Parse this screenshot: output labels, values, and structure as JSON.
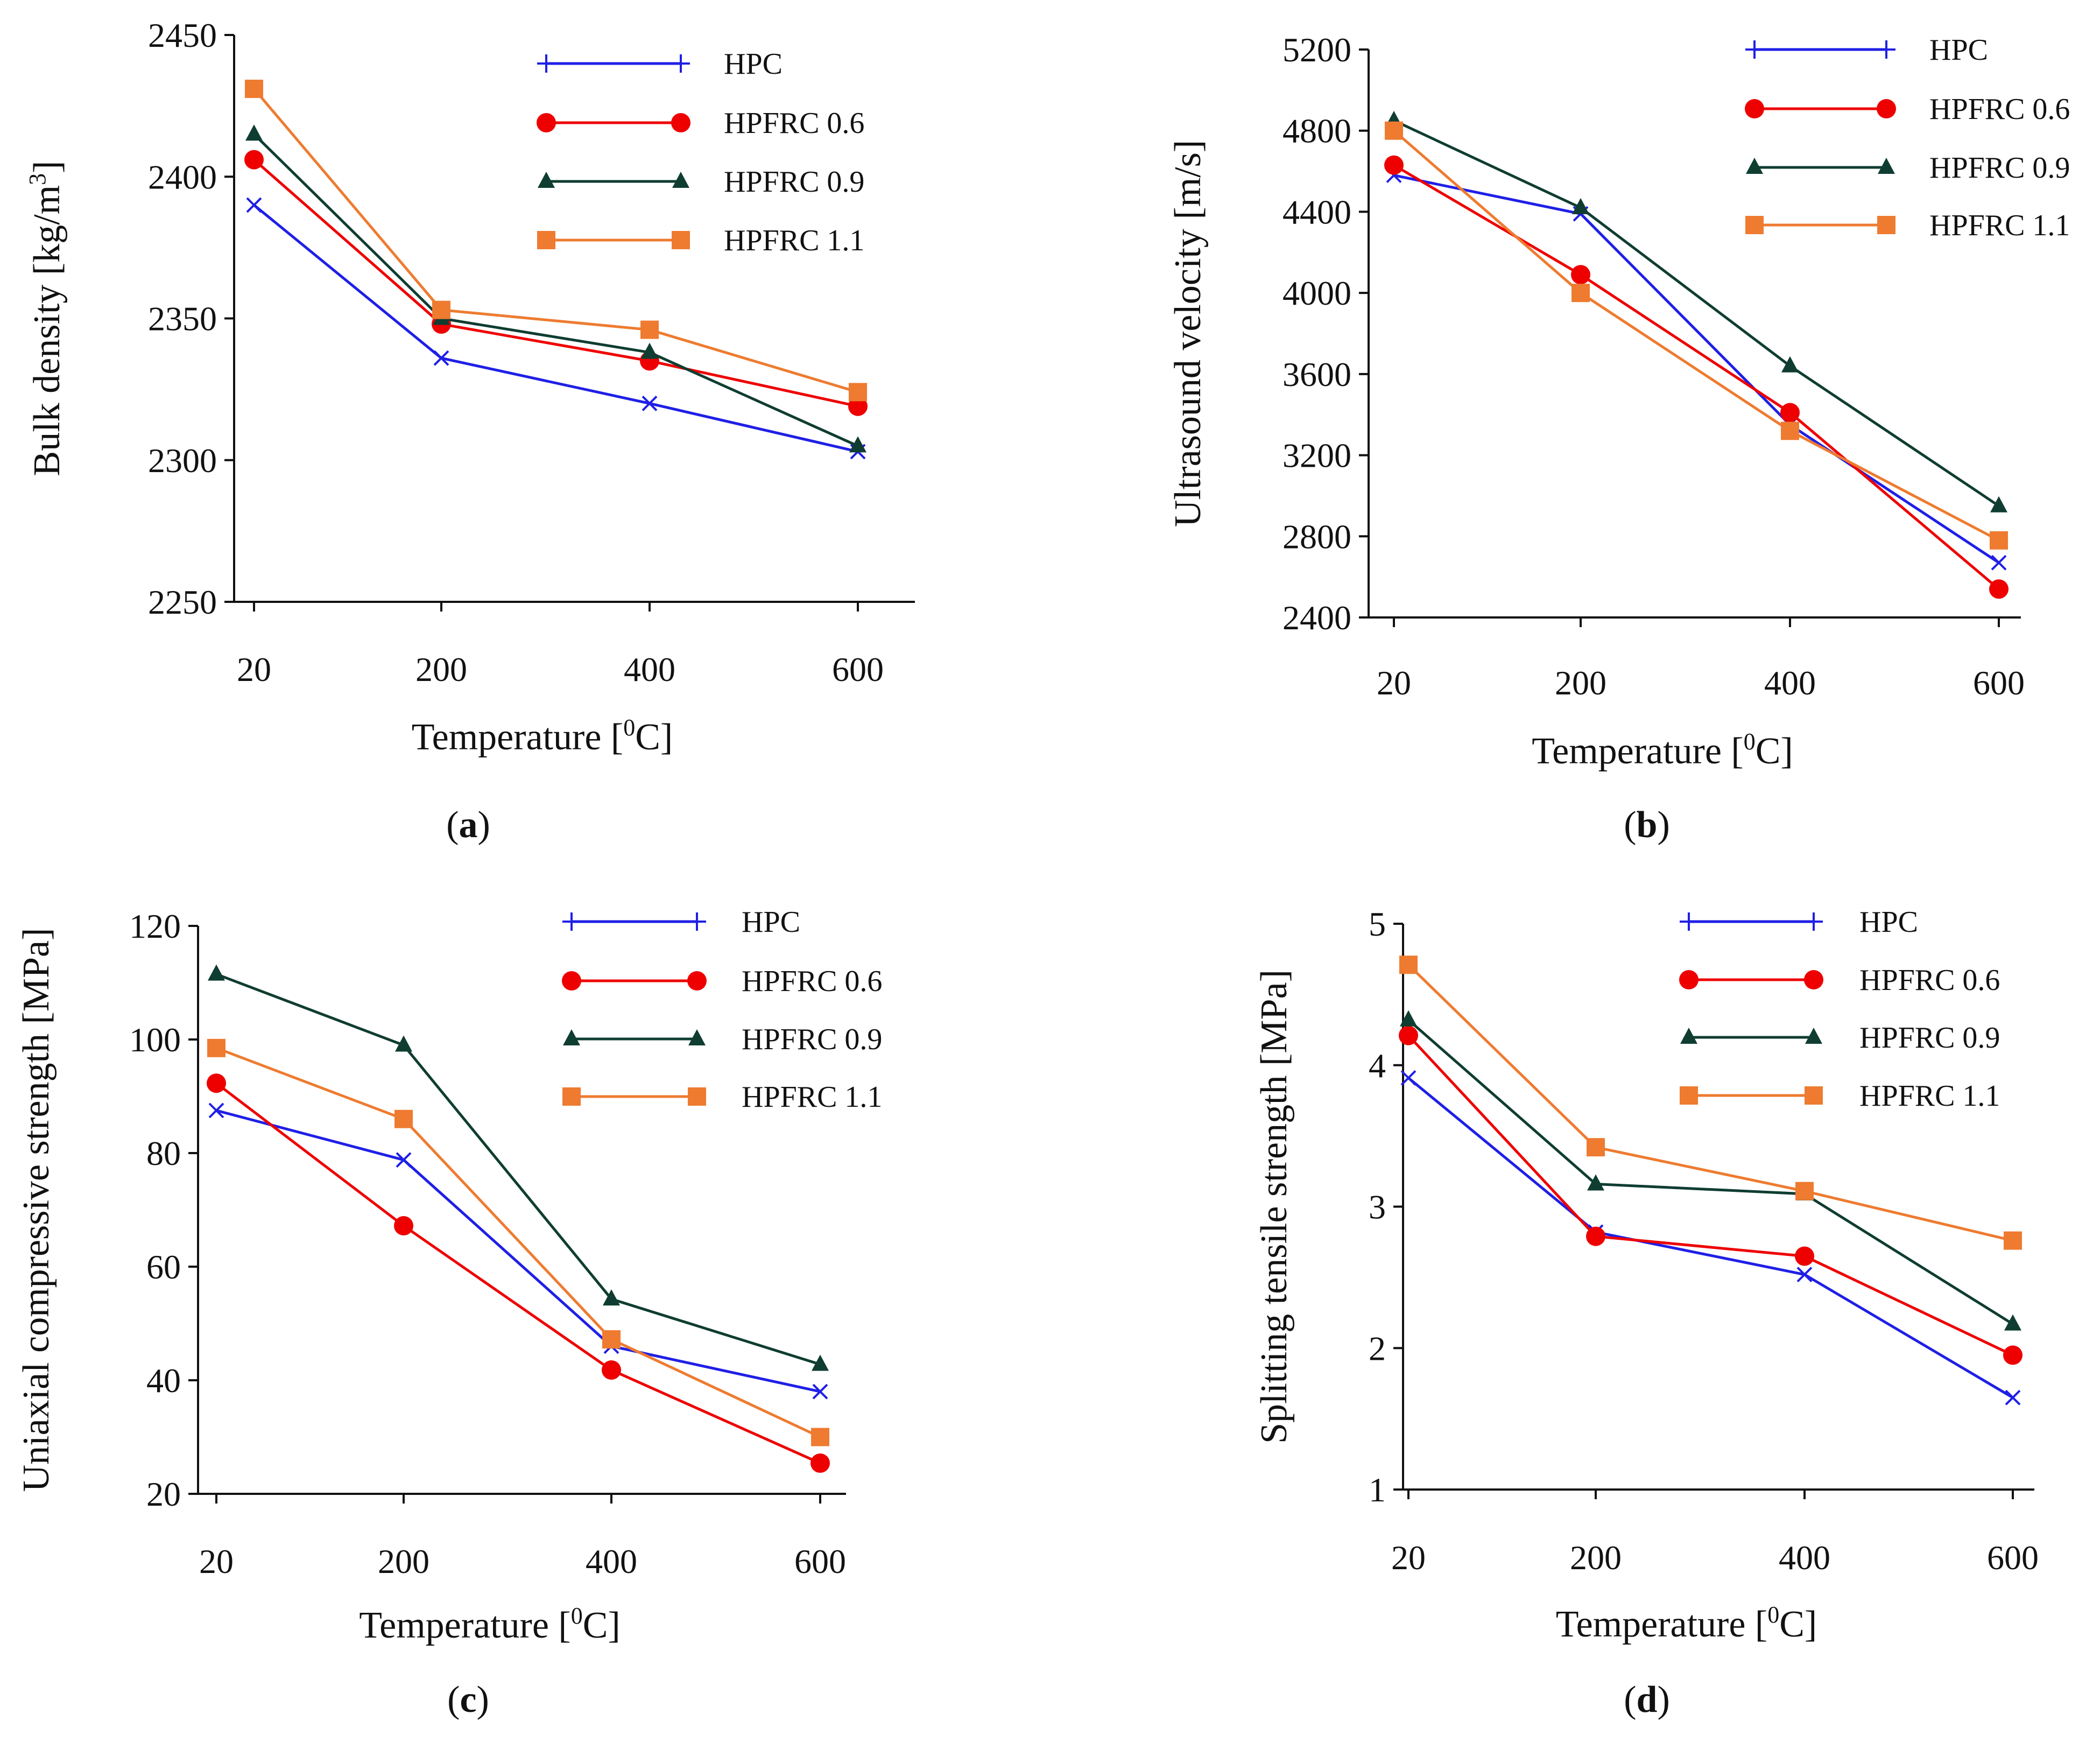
{
  "figure": {
    "colors": {
      "HPC": "#1f1fe6",
      "HPFRC 0.6": "#ee0000",
      "HPFRC 0.9": "#0f3d31",
      "HPFRC 1.1": "#ee7b30",
      "axis": "#111111"
    }
  },
  "chart_data": [
    {
      "type": "line",
      "panel": "a",
      "caption": "(a)",
      "caption_letter": "a",
      "xlabel": "Temperature [0C]",
      "ylabel": "Bulk density [kg/m3]",
      "categories": [
        "20",
        "200",
        "400",
        "600"
      ],
      "ylim": [
        2250,
        2450
      ],
      "yticks": [
        2250,
        2300,
        2350,
        2400,
        2450
      ],
      "legend_position": "top-right",
      "series": [
        {
          "name": "HPC",
          "marker": "x",
          "legend_marker": "plus",
          "values": [
            2390,
            2336,
            2320,
            2303
          ]
        },
        {
          "name": "HPFRC 0.6",
          "marker": "circle",
          "legend_marker": "circle",
          "values": [
            2406,
            2348,
            2335,
            2319
          ]
        },
        {
          "name": "HPFRC 0.9",
          "marker": "triangle",
          "legend_marker": "triangle",
          "values": [
            2415,
            2350,
            2338,
            2305
          ]
        },
        {
          "name": "HPFRC 1.1",
          "marker": "square",
          "legend_marker": "square",
          "values": [
            2431,
            2353,
            2346,
            2324
          ]
        }
      ]
    },
    {
      "type": "line",
      "panel": "b",
      "caption": "(b)",
      "caption_letter": "b",
      "xlabel": "Temperature [0C]",
      "ylabel": "Ultrasound velocity [m/s]",
      "categories": [
        "20",
        "200",
        "400",
        "600"
      ],
      "ylim": [
        2400,
        5200
      ],
      "yticks": [
        2400,
        2800,
        3200,
        3600,
        4000,
        4400,
        4800,
        5200
      ],
      "legend_position": "top-right",
      "series": [
        {
          "name": "HPC",
          "marker": "x",
          "legend_marker": "plus",
          "values": [
            4580,
            4390,
            3350,
            2670
          ]
        },
        {
          "name": "HPFRC 0.6",
          "marker": "circle",
          "legend_marker": "circle",
          "values": [
            4630,
            4090,
            3410,
            2540
          ]
        },
        {
          "name": "HPFRC 0.9",
          "marker": "triangle",
          "legend_marker": "triangle",
          "values": [
            4850,
            4420,
            3640,
            2950
          ]
        },
        {
          "name": "HPFRC 1.1",
          "marker": "square",
          "legend_marker": "square",
          "values": [
            4800,
            4000,
            3320,
            2780
          ]
        }
      ]
    },
    {
      "type": "line",
      "panel": "c",
      "caption": "(c)",
      "caption_letter": "c",
      "xlabel": "Temperature [0C]",
      "ylabel": "Uniaxial compressive strength [MPa]",
      "categories": [
        "20",
        "200",
        "400",
        "600"
      ],
      "ylim": [
        20,
        120
      ],
      "yticks": [
        20,
        40,
        60,
        80,
        100,
        120
      ],
      "legend_position": "top-right",
      "series": [
        {
          "name": "HPC",
          "marker": "x",
          "legend_marker": "plus",
          "values": [
            87.5,
            78.8,
            46,
            38
          ]
        },
        {
          "name": "HPFRC 0.6",
          "marker": "circle",
          "legend_marker": "circle",
          "values": [
            92.3,
            67.2,
            41.8,
            25.4
          ]
        },
        {
          "name": "HPFRC 0.9",
          "marker": "triangle",
          "legend_marker": "triangle",
          "values": [
            111.5,
            99,
            54.3,
            42.8
          ]
        },
        {
          "name": "HPFRC 1.1",
          "marker": "square",
          "legend_marker": "square",
          "values": [
            98.5,
            86,
            47.2,
            30
          ]
        }
      ]
    },
    {
      "type": "line",
      "panel": "d",
      "caption": "(d)",
      "caption_letter": "d",
      "xlabel": "Temperature [0C]",
      "ylabel": "Splitting tensile strength [MPa]",
      "categories": [
        "20",
        "200",
        "400",
        "600"
      ],
      "ylim": [
        1,
        5
      ],
      "yticks": [
        1,
        2,
        3,
        4,
        5
      ],
      "legend_position": "top-right",
      "series": [
        {
          "name": "HPC",
          "marker": "x",
          "legend_marker": "plus",
          "values": [
            3.91,
            2.82,
            2.52,
            1.65
          ]
        },
        {
          "name": "HPFRC 0.6",
          "marker": "circle",
          "legend_marker": "circle",
          "values": [
            4.21,
            2.79,
            2.65,
            1.95
          ]
        },
        {
          "name": "HPFRC 0.9",
          "marker": "triangle",
          "legend_marker": "triangle",
          "values": [
            4.32,
            3.16,
            3.09,
            2.17
          ]
        },
        {
          "name": "HPFRC 1.1",
          "marker": "square",
          "legend_marker": "square",
          "values": [
            4.71,
            3.42,
            3.11,
            2.76
          ]
        }
      ]
    }
  ]
}
